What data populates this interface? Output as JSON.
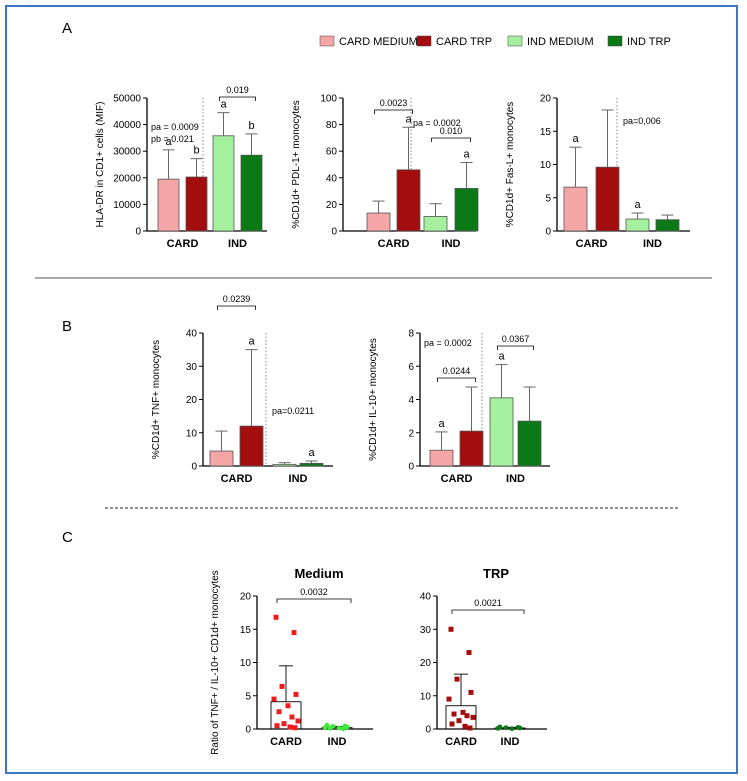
{
  "figure": {
    "legend": [
      {
        "label": "CARD MEDIUM",
        "color": "#f4a6a6"
      },
      {
        "label": "CARD TRP",
        "color": "#a30d0d"
      },
      {
        "label": "IND MEDIUM",
        "color": "#a4f09e"
      },
      {
        "label": "IND TRP",
        "color": "#0b7a16"
      }
    ],
    "panel_labels": {
      "A": "A",
      "B": "B",
      "C": "C"
    }
  },
  "colors": {
    "card_medium": "#f4a6a6",
    "card_trp": "#a30d0d",
    "ind_medium": "#a4f09e",
    "ind_trp": "#0b7a16",
    "scatter_card_medium": "#ee1c1c",
    "scatter_ind_medium": "#3fe83a",
    "scatter_card_trp": "#a30d0d",
    "scatter_ind_trp": "#0b7a16",
    "frame": "#3d74c3"
  },
  "chart_data": [
    {
      "panel": "A",
      "type": "bar",
      "categories": [
        "CARD",
        "IND"
      ],
      "ylabel": "HLA-DR in CD1+ cells (MIF)",
      "ylim": [
        0,
        50000
      ],
      "yticks": [
        "0",
        "10000",
        "20000",
        "30000",
        "40000",
        "50000"
      ],
      "series": [
        {
          "name": "CARD MEDIUM",
          "group": "CARD",
          "value": 19500,
          "error": 30500,
          "letter": "a"
        },
        {
          "name": "CARD TRP",
          "group": "CARD",
          "value": 20300,
          "error": 27200,
          "letter": "b"
        },
        {
          "name": "IND MEDIUM",
          "group": "IND",
          "value": 35800,
          "error": 44500,
          "letter": "a"
        },
        {
          "name": "IND TRP",
          "group": "IND",
          "value": 28500,
          "error": 36500,
          "letter": "b"
        }
      ],
      "annotations": [
        "pa = 0.0009",
        "pb = 0.021"
      ],
      "brackets": [
        {
          "from": "IND MEDIUM",
          "to": "IND TRP",
          "label": "0.019"
        }
      ]
    },
    {
      "panel": "A",
      "type": "bar",
      "categories": [
        "CARD",
        "IND"
      ],
      "ylabel": "%CD1d+ PDL-1+ monocytes",
      "ylim": [
        0,
        100
      ],
      "yticks": [
        "0",
        "20",
        "40",
        "60",
        "80",
        "100"
      ],
      "series": [
        {
          "name": "CARD MEDIUM",
          "group": "CARD",
          "value": 13.5,
          "error": 22.5,
          "letter": ""
        },
        {
          "name": "CARD TRP",
          "group": "CARD",
          "value": 46,
          "error": 78,
          "letter": "a"
        },
        {
          "name": "IND MEDIUM",
          "group": "IND",
          "value": 11,
          "error": 20.5,
          "letter": ""
        },
        {
          "name": "IND TRP",
          "group": "IND",
          "value": 32,
          "error": 51.5,
          "letter": "a"
        }
      ],
      "annotations": [
        "pa = 0.0002"
      ],
      "brackets": [
        {
          "from": "CARD MEDIUM",
          "to": "CARD TRP",
          "label": "0.0023"
        },
        {
          "from": "IND MEDIUM",
          "to": "IND TRP",
          "label": "0.010"
        }
      ]
    },
    {
      "panel": "A",
      "type": "bar",
      "categories": [
        "CARD",
        "IND"
      ],
      "ylabel": "%CD1d+ Fas-L+ monocytes",
      "ylim": [
        0,
        20
      ],
      "yticks": [
        "0",
        "5",
        "10",
        "15",
        "20"
      ],
      "series": [
        {
          "name": "CARD MEDIUM",
          "group": "CARD",
          "value": 6.6,
          "error": 12.6,
          "letter": "a"
        },
        {
          "name": "CARD TRP",
          "group": "CARD",
          "value": 9.6,
          "error": 18.2,
          "letter": ""
        },
        {
          "name": "IND MEDIUM",
          "group": "IND",
          "value": 1.8,
          "error": 2.7,
          "letter": "a"
        },
        {
          "name": "IND TRP",
          "group": "IND",
          "value": 1.7,
          "error": 2.4,
          "letter": ""
        }
      ],
      "annotations": [
        "pa=0,006"
      ],
      "brackets": []
    },
    {
      "panel": "B",
      "type": "bar",
      "categories": [
        "CARD",
        "IND"
      ],
      "ylabel": "%CD1d+ TNF+ monocytes",
      "ylim": [
        0,
        40
      ],
      "yticks": [
        "0",
        "10",
        "20",
        "30",
        "40"
      ],
      "series": [
        {
          "name": "CARD MEDIUM",
          "group": "CARD",
          "value": 4.5,
          "error": 10.5,
          "letter": ""
        },
        {
          "name": "CARD TRP",
          "group": "CARD",
          "value": 12,
          "error": 35,
          "letter": "a"
        },
        {
          "name": "IND MEDIUM",
          "group": "IND",
          "value": 0.5,
          "error": 1.0,
          "letter": ""
        },
        {
          "name": "IND TRP",
          "group": "IND",
          "value": 0.8,
          "error": 1.5,
          "letter": "a"
        }
      ],
      "annotations": [
        "pa=0.0211"
      ],
      "brackets": [
        {
          "from": "CARD MEDIUM",
          "to": "CARD TRP",
          "label": "0.0239"
        }
      ]
    },
    {
      "panel": "B",
      "type": "bar",
      "categories": [
        "CARD",
        "IND"
      ],
      "ylabel": "%CD1d+ IL-10+ monocytes",
      "ylim": [
        0,
        8
      ],
      "yticks": [
        "0",
        "2",
        "4",
        "6",
        "8"
      ],
      "series": [
        {
          "name": "CARD MEDIUM",
          "group": "CARD",
          "value": 0.95,
          "error": 2.05,
          "letter": "a"
        },
        {
          "name": "CARD TRP",
          "group": "CARD",
          "value": 2.1,
          "error": 4.75,
          "letter": ""
        },
        {
          "name": "IND MEDIUM",
          "group": "IND",
          "value": 4.1,
          "error": 6.1,
          "letter": "a"
        },
        {
          "name": "IND TRP",
          "group": "IND",
          "value": 2.7,
          "error": 4.75,
          "letter": ""
        }
      ],
      "annotations": [
        "pa = 0.0002"
      ],
      "brackets": [
        {
          "from": "CARD MEDIUM",
          "to": "CARD TRP",
          "label": "0.0244"
        },
        {
          "from": "IND MEDIUM",
          "to": "IND TRP",
          "label": "0.0367"
        }
      ]
    },
    {
      "panel": "C",
      "type": "scatter",
      "title": "Medium",
      "categories": [
        "CARD",
        "IND"
      ],
      "ylabel": "Ratio of TNF+ / IL-10+ CD1d+ monocytes",
      "ylim": [
        0,
        20
      ],
      "yticks": [
        "0",
        "5",
        "10",
        "15",
        "20"
      ],
      "series": [
        {
          "group": "CARD",
          "bar": 4.1,
          "error": 9.5,
          "marker": "square",
          "points": [
            16.8,
            14.5,
            6.4,
            5.2,
            4.5,
            3.5,
            2.6,
            1.8,
            1.2,
            0.8,
            0.5,
            0.3,
            0.2
          ]
        },
        {
          "group": "IND",
          "bar": 0.2,
          "error": 0.4,
          "marker": "circle",
          "points": [
            0.6,
            0.45,
            0.4,
            0.3,
            0.2,
            0.15,
            0.1,
            0.05
          ]
        }
      ],
      "brackets": [
        {
          "from": "CARD",
          "to": "IND",
          "label": "0.0032"
        }
      ]
    },
    {
      "panel": "C",
      "type": "scatter",
      "title": "TRP",
      "categories": [
        "CARD",
        "IND"
      ],
      "ylim": [
        0,
        40
      ],
      "yticks": [
        "0",
        "10",
        "20",
        "30",
        "40"
      ],
      "series": [
        {
          "group": "CARD",
          "bar": 7.0,
          "error": 16.5,
          "marker": "square",
          "points": [
            30,
            23,
            15,
            11,
            9,
            5,
            4.5,
            4,
            3.5,
            2.5,
            1.5,
            0.8,
            0.3
          ]
        },
        {
          "group": "IND",
          "bar": 0.3,
          "error": 0.5,
          "marker": "circle",
          "points": [
            0.6,
            0.5,
            0.4,
            0.3,
            0.2,
            0.1
          ]
        }
      ],
      "brackets": [
        {
          "from": "CARD",
          "to": "IND",
          "label": "0.0021"
        }
      ]
    }
  ]
}
